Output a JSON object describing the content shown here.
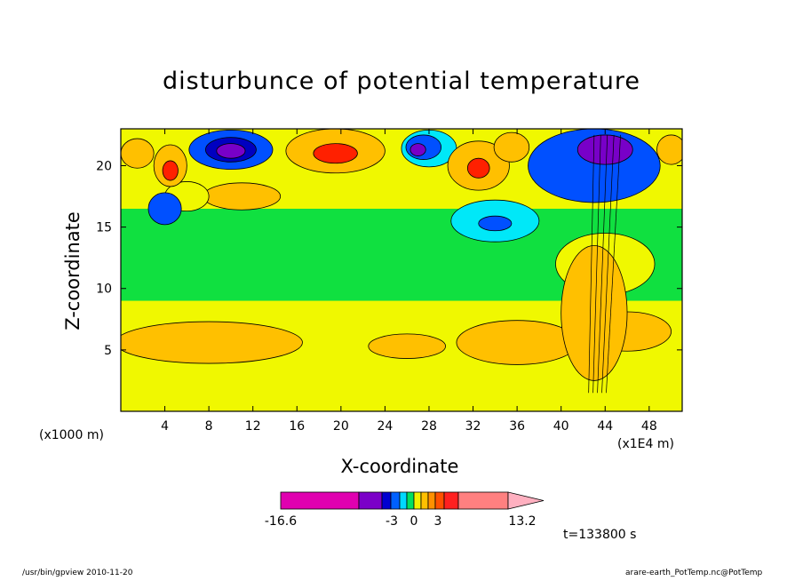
{
  "chart_data": {
    "type": "heatmap",
    "title": "disturbunce of potential temperature",
    "xlabel": "X-coordinate",
    "ylabel": "Z-coordinate",
    "x_unit_left": "(x1000 m)",
    "x_unit_right": "(x1E4 m)",
    "xlim": [
      0,
      51
    ],
    "ylim": [
      0,
      23
    ],
    "x_ticks": [
      4,
      8,
      12,
      16,
      20,
      24,
      28,
      32,
      36,
      40,
      44,
      48
    ],
    "y_ticks": [
      5,
      10,
      15,
      20
    ],
    "colorbar": {
      "min_label": "-16.6",
      "labels": [
        "-3",
        "0",
        "3"
      ],
      "max_label": "13.2",
      "colors": [
        "#e000b0",
        "#7b00c8",
        "#0000d0",
        "#0060ff",
        "#00d8ff",
        "#00e060",
        "#f0f000",
        "#ffc000",
        "#ff9000",
        "#ff5000",
        "#ff2020",
        "#ff8080",
        "#ffb0c0"
      ]
    },
    "time_label": "t=133800 s",
    "colors": {
      "green": "#10e040",
      "yellow": "#f0f800",
      "orange": "#ffc000",
      "cyan": "#00e8f8",
      "blue": "#0050ff",
      "navy": "#0000c0",
      "purple": "#7800c8",
      "red": "#ff2000"
    }
  },
  "footer": {
    "left": "/usr/bin/gpview 2010-11-20",
    "right": "arare-earth_PotTemp.nc@PotTemp"
  }
}
